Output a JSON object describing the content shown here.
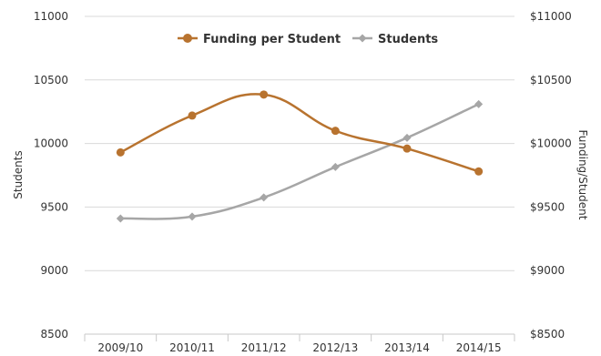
{
  "chart_data": {
    "type": "line",
    "categories": [
      "2009/10",
      "2010/11",
      "2011/12",
      "2012/13",
      "2013/14",
      "2014/15"
    ],
    "series": [
      {
        "name": "Funding per Student",
        "axis": "right",
        "color": "#b8732f",
        "marker": "circle",
        "values": [
          9930,
          10220,
          10385,
          10100,
          9960,
          9780
        ]
      },
      {
        "name": "Students",
        "axis": "left",
        "color": "#a6a6a6",
        "marker": "diamond",
        "values": [
          9410,
          9425,
          9575,
          9815,
          10045,
          10310
        ]
      }
    ],
    "ylabel": "Students",
    "y2label": "Funding/Student",
    "ylim": [
      8500,
      11000
    ],
    "y2lim": [
      8500,
      11000
    ],
    "yticks": [
      "8500",
      "9000",
      "9500",
      "10000",
      "10500",
      "11000"
    ],
    "y2ticks": [
      "$8500",
      "$9000",
      "$9500",
      "$10000",
      "$10500",
      "$11000"
    ],
    "legend_position": "top-center",
    "grid": true
  }
}
